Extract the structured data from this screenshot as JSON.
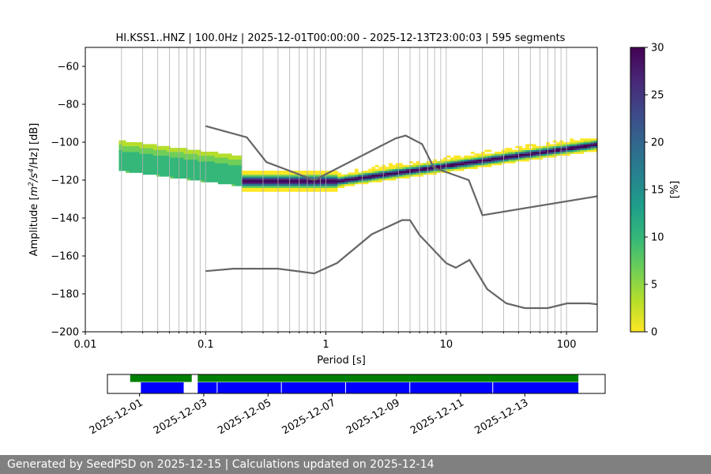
{
  "chart_data": {
    "type": "heatmap",
    "title": "HI.KSS1..HNZ | 100.0Hz | 2025-12-01T00:00:00 - 2025-12-13T23:00:03 | 595 segments",
    "xlabel": "Period [s]",
    "ylabel_parts": [
      "Amplitude [",
      "m",
      "2",
      "/s",
      "4",
      "/Hz] [dB]"
    ],
    "x_scale": "log",
    "xlim": [
      0.01,
      180
    ],
    "ylim": [
      -200,
      -50
    ],
    "x_ticks": [
      {
        "v": 0.01,
        "label": "0.01"
      },
      {
        "v": 0.1,
        "label": "0.1"
      },
      {
        "v": 1,
        "label": "1"
      },
      {
        "v": 10,
        "label": "10"
      },
      {
        "v": 100,
        "label": "100"
      }
    ],
    "y_ticks": [
      {
        "v": -60,
        "label": "−60"
      },
      {
        "v": -80,
        "label": "−80"
      },
      {
        "v": -100,
        "label": "−100"
      },
      {
        "v": -120,
        "label": "−120"
      },
      {
        "v": -140,
        "label": "−140"
      },
      {
        "v": -160,
        "label": "−160"
      },
      {
        "v": -180,
        "label": "−180"
      },
      {
        "v": -200,
        "label": "−200"
      }
    ],
    "colorbar": {
      "label": "[%]",
      "min": 0,
      "max": 30,
      "ticks": [
        {
          "v": 0,
          "label": "0"
        },
        {
          "v": 5,
          "label": "5"
        },
        {
          "v": 10,
          "label": "10"
        },
        {
          "v": 15,
          "label": "15"
        },
        {
          "v": 20,
          "label": "20"
        },
        {
          "v": 25,
          "label": "25"
        },
        {
          "v": 30,
          "label": "30"
        }
      ],
      "colors": [
        "#fde725",
        "#b5de2b",
        "#6ece58",
        "#35b779",
        "#1f9e89",
        "#26828e",
        "#31688e",
        "#3e4989",
        "#482878",
        "#440154"
      ]
    },
    "series": [
      {
        "name": "NHNM",
        "color": "#666666",
        "points": [
          [
            0.1,
            -91.5
          ],
          [
            0.22,
            -97.4
          ],
          [
            0.32,
            -110.5
          ],
          [
            0.8,
            -120
          ],
          [
            3.8,
            -98
          ],
          [
            4.6,
            -96.5
          ],
          [
            6.3,
            -101
          ],
          [
            7.9,
            -113.5
          ],
          [
            15.4,
            -120
          ],
          [
            20,
            -138.5
          ],
          [
            180,
            -128.5
          ]
        ]
      },
      {
        "name": "NLNM",
        "color": "#666666",
        "points": [
          [
            0.1,
            -168
          ],
          [
            0.17,
            -166.7
          ],
          [
            0.4,
            -166.7
          ],
          [
            0.8,
            -169.2
          ],
          [
            1.24,
            -163.7
          ],
          [
            2.4,
            -148.6
          ],
          [
            4.3,
            -141.1
          ],
          [
            5,
            -141.1
          ],
          [
            6,
            -149
          ],
          [
            10,
            -163.8
          ],
          [
            12,
            -166.2
          ],
          [
            15.6,
            -162.1
          ],
          [
            21.9,
            -177.5
          ],
          [
            31.6,
            -185
          ],
          [
            45,
            -187.5
          ],
          [
            70,
            -187.5
          ],
          [
            101,
            -185
          ],
          [
            154,
            -185
          ],
          [
            180,
            -185.5
          ]
        ]
      }
    ],
    "psd_density": {
      "description": "probabilistic power spectral density, % per bin",
      "bands": [
        {
          "period_range": [
            0.019,
            0.2
          ],
          "mode_db": -110,
          "spread_db": 8,
          "peak_pct": 12
        },
        {
          "period_range": [
            0.2,
            3
          ],
          "mode_db": -121,
          "spread_db": 2,
          "peak_pct": 30
        },
        {
          "period_range": [
            3,
            180
          ],
          "mode_db": -112,
          "spread_db": 1,
          "peak_pct": 30
        }
      ]
    },
    "data_availability": {
      "ticks": [
        "2025-12-01",
        "2025-12-03",
        "2025-12-05",
        "2025-12-07",
        "2025-12-09",
        "2025-12-11",
        "2025-12-13"
      ],
      "start": "2025-11-30T00:00",
      "end": "2025-12-15T12:00",
      "green_segments": [
        [
          "2025-11-30T17:00",
          "2025-12-02T15:00"
        ],
        [
          "2025-12-02T19:30",
          "2025-12-14T16:00"
        ]
      ],
      "blue_segments": [
        [
          "2025-12-01T01:00",
          "2025-12-02T09:00"
        ],
        [
          "2025-12-02T19:30",
          "2025-12-14T16:00"
        ]
      ],
      "blue_gaps": [
        "2025-12-03T10:00",
        "2025-12-05T10:00",
        "2025-12-07T10:00",
        "2025-12-09T10:00",
        "2025-12-12T00:00"
      ]
    }
  },
  "footer": {
    "text": "Generated by SeedPSD on 2025-12-15 | Calculations updated on 2025-12-14"
  }
}
